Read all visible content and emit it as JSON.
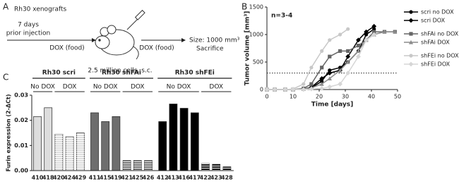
{
  "panels": {
    "a": "A",
    "b": "B",
    "c": "C"
  },
  "diagram": {
    "title": "Rh30 xenografts",
    "pre_line1": "7 days",
    "pre_line2": "prior injection",
    "dox1": "DOX (food)",
    "dox2": "DOX (food)",
    "cells": "2.5 million cells, s.c.",
    "size": "Size: 1000 mm³",
    "end": "Sacrifice"
  },
  "chart_data": [
    {
      "type": "line",
      "annotation": "n=3-4",
      "x_label": "Time [days]",
      "y_label": "Tumor volume [mm³]",
      "xlim": [
        0,
        50
      ],
      "xticks": [
        0,
        10,
        20,
        30,
        40,
        50
      ],
      "ylim": [
        0,
        1500
      ],
      "yticks": [
        0,
        500,
        1000,
        1500
      ],
      "reference_line": 300,
      "series": [
        {
          "name": "scri no DOX",
          "color": "#000000",
          "marker": "circle",
          "x": [
            0,
            3,
            7,
            10,
            14,
            17,
            21,
            24,
            28,
            31,
            35,
            38,
            41
          ],
          "values": [
            0,
            0,
            0,
            0,
            10,
            30,
            150,
            350,
            400,
            500,
            700,
            1000,
            1100
          ]
        },
        {
          "name": "scri DOX",
          "color": "#000000",
          "marker": "diamond",
          "x": [
            0,
            3,
            7,
            10,
            14,
            17,
            21,
            24,
            28,
            31,
            35,
            38,
            41
          ],
          "values": [
            0,
            0,
            0,
            0,
            10,
            40,
            200,
            300,
            350,
            600,
            900,
            1050,
            1150
          ]
        },
        {
          "name": "shFAi no DOX",
          "color": "#666666",
          "marker": "square",
          "x": [
            0,
            3,
            7,
            10,
            14,
            17,
            21,
            24,
            28,
            31,
            35,
            38,
            41,
            45,
            49
          ],
          "values": [
            0,
            0,
            0,
            0,
            20,
            100,
            400,
            600,
            700,
            700,
            800,
            900,
            1050,
            1050,
            1050
          ]
        },
        {
          "name": "shFAi DOX",
          "color": "#8c8c8c",
          "marker": "triangle",
          "x": [
            0,
            3,
            7,
            10,
            14,
            17,
            21,
            24,
            28,
            31,
            35,
            38,
            41,
            45,
            49
          ],
          "values": [
            0,
            0,
            0,
            0,
            10,
            30,
            100,
            200,
            350,
            500,
            700,
            900,
            1000,
            1050,
            1050
          ]
        },
        {
          "name": "shFEi no DOX",
          "color": "#c8c8c8",
          "marker": "circle",
          "x": [
            0,
            3,
            7,
            10,
            14,
            17,
            21,
            24,
            28,
            31
          ],
          "values": [
            0,
            0,
            0,
            10,
            100,
            400,
            700,
            900,
            1000,
            1100
          ]
        },
        {
          "name": "shFEi DOX",
          "color": "#d6d6d6",
          "marker": "diamond",
          "x": [
            0,
            3,
            7,
            10,
            14,
            17,
            21,
            24,
            28,
            31,
            35,
            38,
            41
          ],
          "values": [
            0,
            0,
            0,
            0,
            0,
            10,
            20,
            50,
            100,
            300,
            600,
            900,
            1000
          ]
        }
      ]
    },
    {
      "type": "bar",
      "y_label": "Furin expression (2-ΔCt)",
      "ylim": [
        0,
        0.03
      ],
      "yticks": [
        {
          "value": 0,
          "label": "0.00"
        },
        {
          "value": 0.01,
          "label": "0.01"
        },
        {
          "value": 0.02,
          "label": "0.02"
        },
        {
          "value": 0.03,
          "label": "0.03"
        }
      ],
      "groups": [
        {
          "name": "Rh30 scri",
          "subgroups": [
            {
              "name": "No DOX",
              "color": "#dddddd",
              "hatched": false,
              "categories": [
                "410",
                "418"
              ],
              "values": [
                0.0215,
                0.025
              ]
            },
            {
              "name": "DOX",
              "color": "#dddddd",
              "hatched": true,
              "categories": [
                "420",
                "424",
                "429"
              ],
              "values": [
                0.0145,
                0.0135,
                0.015
              ]
            }
          ]
        },
        {
          "name": "Rh30 shFAi",
          "subgroups": [
            {
              "name": "No DOX",
              "color": "#6e6e6e",
              "hatched": false,
              "categories": [
                "411",
                "415",
                "419"
              ],
              "values": [
                0.023,
                0.0195,
                0.0215
              ]
            },
            {
              "name": "DOX",
              "color": "#6e6e6e",
              "hatched": true,
              "categories": [
                "421",
                "425",
                "426"
              ],
              "values": [
                0.004,
                0.004,
                0.004
              ]
            }
          ]
        },
        {
          "name": "Rh30 shFEi",
          "subgroups": [
            {
              "name": "No DOX",
              "color": "#000000",
              "hatched": false,
              "categories": [
                "412",
                "413",
                "416",
                "417"
              ],
              "values": [
                0.0195,
                0.0265,
                0.0248,
                0.023
              ]
            },
            {
              "name": "DOX",
              "color": "#111111",
              "hatched": true,
              "categories": [
                "422",
                "423",
                "428"
              ],
              "values": [
                0.0028,
                0.0025,
                0.0015
              ]
            }
          ]
        }
      ]
    }
  ]
}
